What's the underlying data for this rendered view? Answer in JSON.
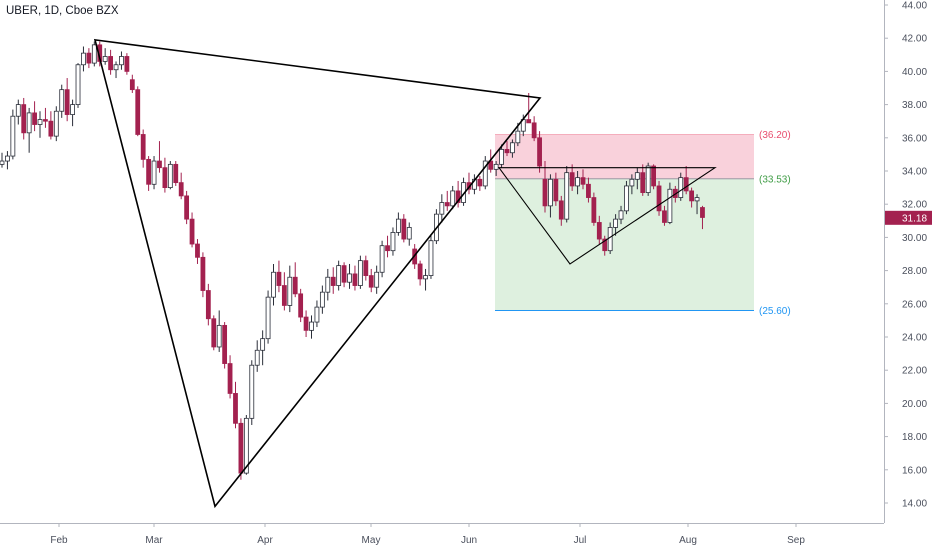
{
  "header": {
    "title": "UBER, 1D, Cboe BZX"
  },
  "colors": {
    "up_candle_fill": "#ffffff",
    "up_candle_border": "#2a2e39",
    "down_candle": "#a3214f",
    "stop_zone": "#f7c6d2",
    "target_zone": "#d8edd9",
    "stop_label": "#e84d6e",
    "entry_label": "#3f9c45",
    "target_label": "#2196f3",
    "price_tag": "#a3214f",
    "trendline": "#000000"
  },
  "chart_data": {
    "type": "candlestick",
    "symbol": "UBER",
    "interval": "1D",
    "exchange": "Cboe BZX",
    "ylim": [
      13,
      44.2
    ],
    "y_ticks": [
      "14.00",
      "16.00",
      "18.00",
      "20.00",
      "22.00",
      "24.00",
      "26.00",
      "28.00",
      "30.00",
      "32.00",
      "34.00",
      "36.00",
      "38.00",
      "40.00",
      "42.00",
      "44.00"
    ],
    "x_ticks": [
      "Feb",
      "Mar",
      "Apr",
      "May",
      "Jun",
      "Jul",
      "Aug",
      "Sep"
    ],
    "last_price": {
      "label": "31.18",
      "value": 31.18
    },
    "position": {
      "stop": {
        "label": "(36.20)",
        "value": 36.2
      },
      "entry": {
        "label": "(33.53)",
        "value": 33.53
      },
      "target": {
        "label": "(25.60)",
        "value": 25.6
      }
    },
    "candles": [
      [
        34.4,
        35.1,
        34.2,
        34.6
      ],
      [
        34.6,
        35.2,
        34.1,
        34.9
      ],
      [
        34.9,
        37.7,
        34.7,
        37.3
      ],
      [
        37.3,
        38.3,
        36.8,
        38.0
      ],
      [
        38.0,
        38.4,
        35.9,
        36.3
      ],
      [
        36.3,
        37.8,
        35.1,
        37.5
      ],
      [
        37.5,
        38.2,
        36.4,
        36.8
      ],
      [
        36.8,
        37.6,
        36.0,
        37.1
      ],
      [
        37.1,
        37.8,
        36.6,
        37.0
      ],
      [
        37.0,
        37.6,
        35.9,
        36.1
      ],
      [
        36.1,
        37.9,
        35.8,
        37.6
      ],
      [
        37.6,
        39.2,
        37.2,
        38.9
      ],
      [
        38.9,
        39.6,
        37.0,
        37.4
      ],
      [
        37.4,
        38.3,
        36.7,
        38.0
      ],
      [
        38.0,
        40.5,
        37.8,
        40.4
      ],
      [
        40.4,
        41.5,
        40.0,
        41.1
      ],
      [
        41.1,
        41.4,
        40.2,
        40.5
      ],
      [
        40.5,
        41.8,
        40.3,
        41.6
      ],
      [
        41.6,
        41.8,
        40.3,
        40.6
      ],
      [
        40.6,
        41.4,
        40.4,
        40.9
      ],
      [
        40.9,
        41.3,
        39.8,
        40.1
      ],
      [
        40.1,
        40.6,
        39.6,
        40.4
      ],
      [
        40.4,
        41.2,
        40.1,
        40.9
      ],
      [
        40.9,
        41.1,
        39.8,
        40.0
      ],
      [
        39.5,
        39.8,
        38.7,
        38.9
      ],
      [
        38.9,
        39.1,
        36.1,
        36.2
      ],
      [
        36.2,
        36.5,
        34.2,
        34.7
      ],
      [
        34.7,
        34.9,
        32.8,
        33.2
      ],
      [
        33.2,
        34.9,
        32.9,
        34.6
      ],
      [
        34.6,
        35.8,
        33.9,
        34.2
      ],
      [
        34.2,
        34.8,
        32.7,
        33.0
      ],
      [
        33.0,
        34.6,
        32.9,
        34.4
      ],
      [
        34.4,
        34.6,
        33.1,
        33.3
      ],
      [
        33.3,
        33.9,
        32.3,
        32.5
      ],
      [
        32.5,
        32.8,
        30.8,
        31.1
      ],
      [
        31.1,
        31.5,
        29.4,
        29.6
      ],
      [
        29.6,
        29.9,
        28.4,
        28.8
      ],
      [
        28.8,
        29.1,
        26.4,
        26.8
      ],
      [
        26.8,
        27.2,
        24.7,
        25.1
      ],
      [
        25.1,
        25.3,
        23.2,
        23.4
      ],
      [
        23.4,
        25.6,
        23.1,
        24.7
      ],
      [
        24.7,
        24.9,
        22.1,
        22.4
      ],
      [
        22.4,
        22.9,
        20.3,
        20.6
      ],
      [
        20.6,
        21.3,
        18.5,
        18.8
      ],
      [
        18.8,
        19.1,
        15.4,
        15.8
      ],
      [
        15.8,
        19.3,
        15.7,
        19.1
      ],
      [
        19.1,
        22.6,
        18.7,
        22.3
      ],
      [
        22.3,
        23.8,
        21.9,
        23.2
      ],
      [
        23.2,
        24.4,
        22.3,
        23.9
      ],
      [
        23.9,
        26.8,
        23.6,
        26.4
      ],
      [
        26.4,
        28.4,
        25.9,
        27.9
      ],
      [
        27.9,
        28.6,
        26.7,
        27.1
      ],
      [
        27.1,
        27.9,
        25.6,
        25.9
      ],
      [
        25.9,
        28.3,
        25.5,
        27.6
      ],
      [
        27.6,
        28.5,
        26.4,
        26.6
      ],
      [
        26.6,
        26.9,
        24.9,
        25.2
      ],
      [
        25.2,
        25.6,
        24.0,
        24.4
      ],
      [
        24.4,
        25.3,
        23.9,
        24.9
      ],
      [
        24.9,
        26.2,
        24.6,
        25.8
      ],
      [
        25.8,
        27.1,
        25.4,
        26.7
      ],
      [
        26.7,
        28.1,
        26.2,
        27.6
      ],
      [
        27.6,
        28.2,
        26.6,
        27.1
      ],
      [
        27.1,
        28.6,
        26.8,
        28.3
      ],
      [
        28.3,
        28.5,
        27.0,
        27.3
      ],
      [
        27.3,
        28.4,
        26.9,
        27.8
      ],
      [
        27.8,
        28.3,
        26.8,
        27.1
      ],
      [
        27.1,
        28.9,
        26.9,
        28.6
      ],
      [
        28.6,
        28.9,
        27.4,
        27.7
      ],
      [
        27.7,
        28.1,
        26.7,
        27.0
      ],
      [
        27.0,
        28.3,
        26.6,
        27.9
      ],
      [
        27.9,
        29.8,
        27.6,
        29.5
      ],
      [
        29.5,
        30.1,
        28.8,
        29.2
      ],
      [
        29.2,
        30.6,
        28.9,
        30.3
      ],
      [
        30.3,
        31.5,
        30.1,
        31.1
      ],
      [
        31.1,
        31.4,
        29.7,
        29.9
      ],
      [
        29.9,
        30.9,
        29.5,
        30.6
      ],
      [
        29.3,
        29.6,
        28.1,
        28.4
      ],
      [
        28.4,
        28.6,
        27.1,
        27.5
      ],
      [
        27.5,
        28.1,
        26.8,
        27.7
      ],
      [
        27.7,
        30.2,
        27.5,
        29.8
      ],
      [
        29.8,
        31.7,
        29.6,
        31.4
      ],
      [
        31.4,
        32.6,
        30.9,
        32.1
      ],
      [
        32.1,
        32.8,
        31.6,
        31.9
      ],
      [
        31.9,
        33.1,
        31.7,
        32.8
      ],
      [
        32.8,
        33.4,
        31.8,
        32.1
      ],
      [
        32.1,
        33.6,
        31.9,
        33.3
      ],
      [
        33.3,
        33.9,
        32.6,
        32.9
      ],
      [
        32.9,
        33.8,
        32.6,
        33.5
      ],
      [
        33.5,
        33.7,
        32.8,
        33.1
      ],
      [
        33.1,
        34.9,
        32.9,
        34.6
      ],
      [
        34.6,
        35.3,
        33.9,
        34.1
      ],
      [
        34.1,
        34.6,
        33.7,
        34.4
      ],
      [
        34.4,
        35.6,
        34.2,
        35.3
      ],
      [
        35.3,
        35.8,
        34.9,
        35.1
      ],
      [
        35.1,
        35.9,
        34.8,
        35.7
      ],
      [
        35.7,
        36.9,
        35.5,
        36.4
      ],
      [
        36.4,
        37.4,
        36.1,
        37.1
      ],
      [
        37.1,
        38.7,
        36.9,
        36.9
      ],
      [
        36.9,
        37.3,
        35.8,
        36.0
      ],
      [
        36.0,
        36.4,
        33.9,
        34.3
      ],
      [
        33.5,
        34.6,
        31.5,
        31.9
      ],
      [
        31.9,
        33.8,
        31.2,
        33.5
      ],
      [
        33.5,
        33.9,
        31.9,
        32.2
      ],
      [
        32.2,
        32.5,
        30.7,
        31.1
      ],
      [
        31.1,
        34.3,
        30.9,
        33.9
      ],
      [
        33.9,
        34.4,
        32.8,
        33.1
      ],
      [
        33.1,
        34.0,
        32.6,
        33.6
      ],
      [
        33.6,
        34.1,
        32.9,
        33.2
      ],
      [
        33.2,
        33.6,
        32.1,
        32.4
      ],
      [
        32.4,
        32.7,
        30.7,
        30.9
      ],
      [
        30.9,
        31.3,
        29.6,
        29.9
      ],
      [
        29.9,
        30.1,
        28.9,
        29.2
      ],
      [
        29.2,
        30.9,
        29.0,
        30.6
      ],
      [
        30.6,
        31.4,
        30.1,
        31.1
      ],
      [
        31.1,
        31.9,
        30.8,
        31.6
      ],
      [
        31.6,
        33.4,
        31.4,
        33.1
      ],
      [
        33.1,
        33.8,
        32.6,
        33.5
      ],
      [
        33.5,
        34.2,
        32.9,
        33.9
      ],
      [
        33.9,
        34.4,
        32.5,
        32.7
      ],
      [
        32.7,
        34.5,
        32.5,
        34.3
      ],
      [
        34.3,
        34.4,
        32.9,
        33.1
      ],
      [
        33.1,
        33.4,
        31.3,
        31.6
      ],
      [
        31.6,
        31.9,
        30.7,
        30.9
      ],
      [
        30.9,
        33.3,
        30.8,
        32.9
      ],
      [
        32.9,
        33.1,
        32.1,
        32.4
      ],
      [
        32.4,
        33.9,
        32.2,
        33.6
      ],
      [
        33.6,
        34.3,
        32.6,
        32.8
      ],
      [
        32.8,
        33.0,
        31.8,
        32.2
      ],
      [
        32.2,
        32.6,
        31.4,
        32.4
      ],
      [
        31.8,
        31.9,
        30.5,
        31.2
      ]
    ],
    "drawings": {
      "triangle_left": [
        [
          95,
          41.9
        ],
        [
          540,
          38.4
        ],
        [
          215,
          13.8
        ]
      ],
      "triangle_right": [
        [
          570,
          28.4
        ],
        [
          715,
          34.2
        ],
        [
          499,
          34.2
        ]
      ]
    }
  }
}
